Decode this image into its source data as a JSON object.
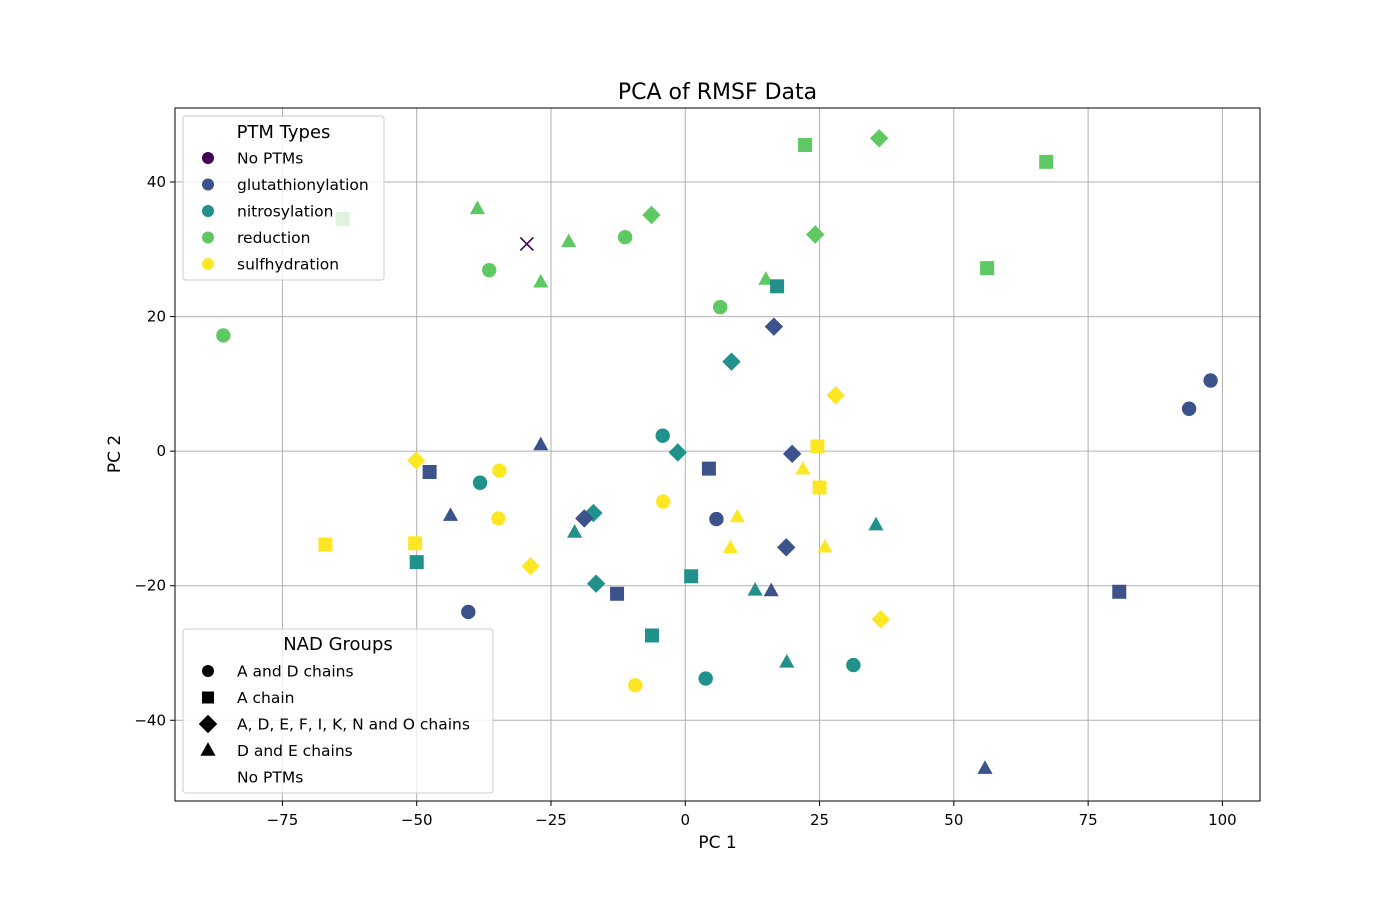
{
  "colors": {
    "No PTMs": "#440154",
    "glutathionylation": "#3b528b",
    "nitrosylation": "#21918c",
    "reduction": "#5ec962",
    "sulfhydration": "#fde725"
  },
  "chart_data": {
    "type": "scatter",
    "title": "PCA of RMSF Data",
    "xlabel": "PC 1",
    "ylabel": "PC 2",
    "xlim": [
      -95,
      107
    ],
    "ylim": [
      -52,
      51
    ],
    "xticks": [
      -75,
      -50,
      -25,
      0,
      25,
      50,
      75,
      100
    ],
    "yticks": [
      -40,
      -20,
      0,
      20,
      40
    ],
    "xtick_labels": [
      "−75",
      "−50",
      "−25",
      "0",
      "25",
      "50",
      "75",
      "100"
    ],
    "ytick_labels": [
      "−40",
      "−20",
      "0",
      "20",
      "40"
    ],
    "grid": true,
    "legends": [
      {
        "title": "PTM Types",
        "placement": "top-left",
        "entries": [
          {
            "label": "No PTMs",
            "marker": "circle",
            "ptm": "No PTMs"
          },
          {
            "label": "glutathionylation",
            "marker": "circle",
            "ptm": "glutathionylation"
          },
          {
            "label": "nitrosylation",
            "marker": "circle",
            "ptm": "nitrosylation"
          },
          {
            "label": "reduction",
            "marker": "circle",
            "ptm": "reduction"
          },
          {
            "label": "sulfhydration",
            "marker": "circle",
            "ptm": "sulfhydration"
          }
        ]
      },
      {
        "title": "NAD Groups",
        "placement": "bottom-left",
        "entries": [
          {
            "label": "A and D chains",
            "marker": "circle"
          },
          {
            "label": "A chain",
            "marker": "square"
          },
          {
            "label": "A, D, E, F, I, K, N and O chains",
            "marker": "diamond"
          },
          {
            "label": "D and E chains",
            "marker": "triangle"
          },
          {
            "label": "No PTMs",
            "marker": "none"
          }
        ]
      }
    ],
    "points": [
      {
        "x": -29.5,
        "y": 30.8,
        "ptm": "No PTMs",
        "marker": "x"
      },
      {
        "x": -86,
        "y": 17.2,
        "ptm": "reduction",
        "marker": "circle"
      },
      {
        "x": -36.5,
        "y": 26.9,
        "ptm": "reduction",
        "marker": "circle"
      },
      {
        "x": -11.2,
        "y": 31.8,
        "ptm": "reduction",
        "marker": "circle"
      },
      {
        "x": 6.5,
        "y": 21.4,
        "ptm": "reduction",
        "marker": "circle"
      },
      {
        "x": -63.8,
        "y": 34.5,
        "ptm": "reduction",
        "marker": "square"
      },
      {
        "x": 22.3,
        "y": 45.5,
        "ptm": "reduction",
        "marker": "square"
      },
      {
        "x": 67.2,
        "y": 43.0,
        "ptm": "reduction",
        "marker": "square"
      },
      {
        "x": 56.2,
        "y": 27.2,
        "ptm": "reduction",
        "marker": "square"
      },
      {
        "x": -6.3,
        "y": 35.1,
        "ptm": "reduction",
        "marker": "diamond"
      },
      {
        "x": 24.2,
        "y": 32.2,
        "ptm": "reduction",
        "marker": "diamond"
      },
      {
        "x": 36.1,
        "y": 46.5,
        "ptm": "reduction",
        "marker": "diamond"
      },
      {
        "x": -38.7,
        "y": 36.0,
        "ptm": "reduction",
        "marker": "triangle"
      },
      {
        "x": -21.7,
        "y": 31.1,
        "ptm": "reduction",
        "marker": "triangle"
      },
      {
        "x": -26.9,
        "y": 25.1,
        "ptm": "reduction",
        "marker": "triangle"
      },
      {
        "x": 15.0,
        "y": 25.5,
        "ptm": "reduction",
        "marker": "triangle"
      },
      {
        "x": -4.2,
        "y": 2.3,
        "ptm": "nitrosylation",
        "marker": "circle"
      },
      {
        "x": -38.2,
        "y": -4.7,
        "ptm": "nitrosylation",
        "marker": "circle"
      },
      {
        "x": 3.8,
        "y": -33.8,
        "ptm": "nitrosylation",
        "marker": "circle"
      },
      {
        "x": 31.3,
        "y": -31.8,
        "ptm": "nitrosylation",
        "marker": "circle"
      },
      {
        "x": 17.1,
        "y": 24.5,
        "ptm": "nitrosylation",
        "marker": "square"
      },
      {
        "x": -50.0,
        "y": -16.5,
        "ptm": "nitrosylation",
        "marker": "square"
      },
      {
        "x": 1.1,
        "y": -18.6,
        "ptm": "nitrosylation",
        "marker": "square"
      },
      {
        "x": -6.2,
        "y": -27.4,
        "ptm": "nitrosylation",
        "marker": "square"
      },
      {
        "x": 8.6,
        "y": 13.3,
        "ptm": "nitrosylation",
        "marker": "diamond"
      },
      {
        "x": -1.4,
        "y": -0.2,
        "ptm": "nitrosylation",
        "marker": "diamond"
      },
      {
        "x": -17.1,
        "y": -9.2,
        "ptm": "nitrosylation",
        "marker": "diamond"
      },
      {
        "x": -16.6,
        "y": -19.7,
        "ptm": "nitrosylation",
        "marker": "diamond"
      },
      {
        "x": -20.6,
        "y": -12.1,
        "ptm": "nitrosylation",
        "marker": "triangle"
      },
      {
        "x": 35.5,
        "y": -11.0,
        "ptm": "nitrosylation",
        "marker": "triangle"
      },
      {
        "x": 13.0,
        "y": -20.7,
        "ptm": "nitrosylation",
        "marker": "triangle"
      },
      {
        "x": 18.9,
        "y": -31.4,
        "ptm": "nitrosylation",
        "marker": "triangle"
      },
      {
        "x": 93.8,
        "y": 6.3,
        "ptm": "glutathionylation",
        "marker": "circle"
      },
      {
        "x": 97.8,
        "y": 10.5,
        "ptm": "glutathionylation",
        "marker": "circle"
      },
      {
        "x": 5.8,
        "y": -10.1,
        "ptm": "glutathionylation",
        "marker": "circle"
      },
      {
        "x": -40.4,
        "y": -23.9,
        "ptm": "glutathionylation",
        "marker": "circle"
      },
      {
        "x": -47.6,
        "y": -3.1,
        "ptm": "glutathionylation",
        "marker": "square"
      },
      {
        "x": 4.4,
        "y": -2.6,
        "ptm": "glutathionylation",
        "marker": "square"
      },
      {
        "x": -12.7,
        "y": -21.2,
        "ptm": "glutathionylation",
        "marker": "square"
      },
      {
        "x": 80.8,
        "y": -20.9,
        "ptm": "glutathionylation",
        "marker": "square"
      },
      {
        "x": 16.5,
        "y": 18.5,
        "ptm": "glutathionylation",
        "marker": "diamond"
      },
      {
        "x": 19.9,
        "y": -0.4,
        "ptm": "glutathionylation",
        "marker": "diamond"
      },
      {
        "x": -18.8,
        "y": -10.0,
        "ptm": "glutathionylation",
        "marker": "diamond"
      },
      {
        "x": 18.8,
        "y": -14.3,
        "ptm": "glutathionylation",
        "marker": "diamond"
      },
      {
        "x": -26.9,
        "y": 0.9,
        "ptm": "glutathionylation",
        "marker": "triangle"
      },
      {
        "x": -43.7,
        "y": -9.6,
        "ptm": "glutathionylation",
        "marker": "triangle"
      },
      {
        "x": 16.0,
        "y": -20.8,
        "ptm": "glutathionylation",
        "marker": "triangle"
      },
      {
        "x": 55.8,
        "y": -47.2,
        "ptm": "glutathionylation",
        "marker": "triangle"
      },
      {
        "x": -34.6,
        "y": -2.9,
        "ptm": "sulfhydration",
        "marker": "circle"
      },
      {
        "x": -34.8,
        "y": -10.0,
        "ptm": "sulfhydration",
        "marker": "circle"
      },
      {
        "x": -4.1,
        "y": -7.5,
        "ptm": "sulfhydration",
        "marker": "circle"
      },
      {
        "x": -9.3,
        "y": -34.8,
        "ptm": "sulfhydration",
        "marker": "circle"
      },
      {
        "x": -67.0,
        "y": -13.9,
        "ptm": "sulfhydration",
        "marker": "square"
      },
      {
        "x": -50.3,
        "y": -13.7,
        "ptm": "sulfhydration",
        "marker": "square"
      },
      {
        "x": 24.6,
        "y": 0.7,
        "ptm": "sulfhydration",
        "marker": "square"
      },
      {
        "x": 25.0,
        "y": -5.4,
        "ptm": "sulfhydration",
        "marker": "square"
      },
      {
        "x": -50.1,
        "y": -1.4,
        "ptm": "sulfhydration",
        "marker": "diamond"
      },
      {
        "x": -28.8,
        "y": -17.1,
        "ptm": "sulfhydration",
        "marker": "diamond"
      },
      {
        "x": 28.0,
        "y": 8.3,
        "ptm": "sulfhydration",
        "marker": "diamond"
      },
      {
        "x": 36.4,
        "y": -25.0,
        "ptm": "sulfhydration",
        "marker": "diamond"
      },
      {
        "x": 9.7,
        "y": -9.8,
        "ptm": "sulfhydration",
        "marker": "triangle"
      },
      {
        "x": 8.4,
        "y": -14.4,
        "ptm": "sulfhydration",
        "marker": "triangle"
      },
      {
        "x": 21.9,
        "y": -2.7,
        "ptm": "sulfhydration",
        "marker": "triangle"
      },
      {
        "x": 26.0,
        "y": -14.3,
        "ptm": "sulfhydration",
        "marker": "triangle"
      }
    ]
  }
}
